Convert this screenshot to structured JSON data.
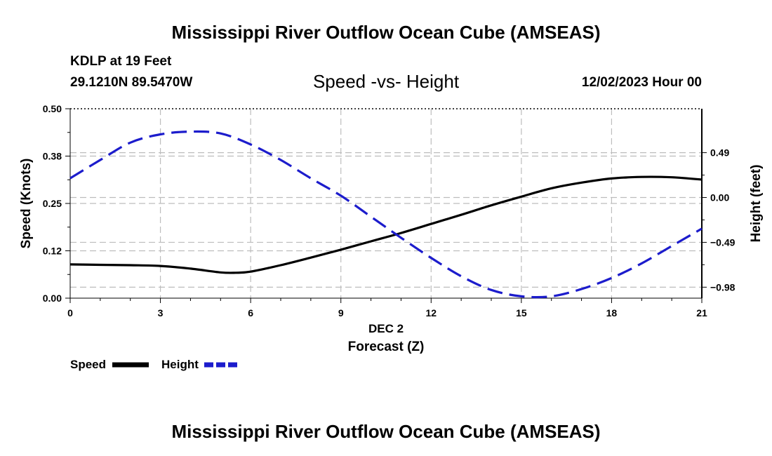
{
  "header": {
    "title": "Mississippi River Outflow Ocean Cube (AMSEAS)",
    "station": "KDLP at 19 Feet",
    "coords": "29.1210N  89.5470W",
    "subtitle": "Speed -vs- Height",
    "datestamp": "12/02/2023 Hour 00"
  },
  "footer": {
    "title": "Mississippi River Outflow Ocean Cube (AMSEAS)"
  },
  "chart_data": {
    "type": "line",
    "title": "Speed -vs- Height",
    "xlabel": "Forecast (Z)",
    "xsublabel": "DEC 2",
    "ylabel": "Speed (Knots)",
    "y2label": "Height (feet)",
    "xlim": [
      0,
      21
    ],
    "ylim": [
      0,
      0.5
    ],
    "y2lim": [
      -1.1,
      0.97
    ],
    "x_ticks": [
      0,
      3,
      6,
      9,
      12,
      15,
      18,
      21
    ],
    "x_tick_labels": [
      "0",
      "3",
      "6",
      "9",
      "12",
      "15",
      "18",
      "21"
    ],
    "y_ticks": [
      0,
      0.125,
      0.25,
      0.375,
      0.5
    ],
    "y_tick_labels": [
      "0.00",
      "0.12",
      "0.25",
      "0.38",
      "0.50"
    ],
    "y2_ticks": [
      -0.98,
      -0.49,
      0.0,
      0.49
    ],
    "y2_tick_labels": [
      "−0.98",
      "−0.49",
      "0.00",
      "0.49"
    ],
    "grid": true,
    "series": [
      {
        "name": "Speed",
        "axis": "left",
        "color": "#000000",
        "dash": "solid",
        "x": [
          0,
          1,
          2,
          3,
          4,
          5,
          5.5,
          6,
          7,
          8,
          9,
          10,
          11,
          12,
          13,
          14,
          15,
          16,
          17,
          18,
          19,
          20,
          21
        ],
        "y": [
          0.089,
          0.088,
          0.087,
          0.085,
          0.078,
          0.068,
          0.067,
          0.07,
          0.087,
          0.107,
          0.128,
          0.15,
          0.172,
          0.196,
          0.22,
          0.245,
          0.268,
          0.29,
          0.305,
          0.316,
          0.32,
          0.319,
          0.313
        ]
      },
      {
        "name": "Height",
        "axis": "right",
        "color": "#1c1ccc",
        "dash": "dashed",
        "x": [
          0,
          1,
          2,
          3,
          4,
          5,
          6,
          7,
          8,
          9,
          10,
          11,
          12,
          13,
          14,
          15,
          16,
          17,
          18,
          19,
          20,
          21
        ],
        "y": [
          0.21,
          0.41,
          0.6,
          0.69,
          0.72,
          0.7,
          0.58,
          0.41,
          0.21,
          0.02,
          -0.21,
          -0.44,
          -0.66,
          -0.86,
          -1.01,
          -1.08,
          -1.08,
          -1.0,
          -0.88,
          -0.72,
          -0.53,
          -0.34
        ]
      }
    ],
    "legend": [
      {
        "label": "Speed",
        "color": "#000000"
      },
      {
        "label": "Height",
        "color": "#1c1ccc"
      }
    ]
  }
}
